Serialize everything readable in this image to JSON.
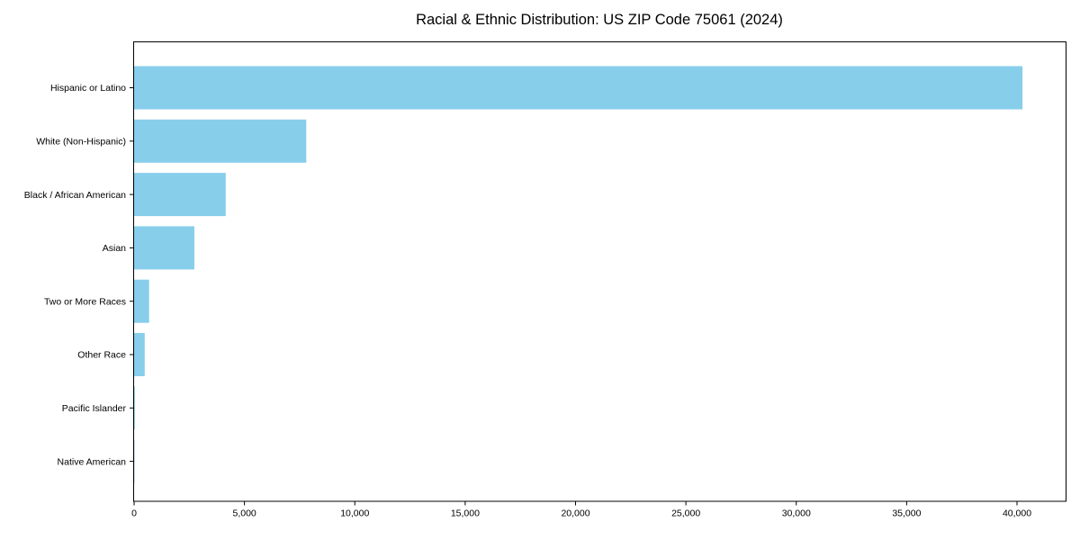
{
  "chart_data": {
    "type": "bar",
    "orientation": "horizontal",
    "title": "Racial & Ethnic Distribution: US ZIP Code 75061 (2024)",
    "categories": [
      "Hispanic or Latino",
      "White (Non-Hispanic)",
      "Black / African American",
      "Asian",
      "Two or More Races",
      "Other Race",
      "Pacific Islander",
      "Native American"
    ],
    "values": [
      40250,
      7800,
      4150,
      2730,
      680,
      480,
      35,
      20
    ],
    "x_ticks": [
      0,
      5000,
      10000,
      15000,
      20000,
      25000,
      30000,
      35000,
      40000
    ],
    "x_tick_labels": [
      "0",
      "5,000",
      "10,000",
      "15,000",
      "20,000",
      "25,000",
      "30,000",
      "35,000",
      "40,000"
    ],
    "xlim": [
      0,
      42200
    ],
    "grid": false,
    "legend_visible": false,
    "bar_color": "#87CEEB",
    "axis_color": "#000000",
    "text_color": "#000000",
    "background_color": "#FFFFFF"
  }
}
